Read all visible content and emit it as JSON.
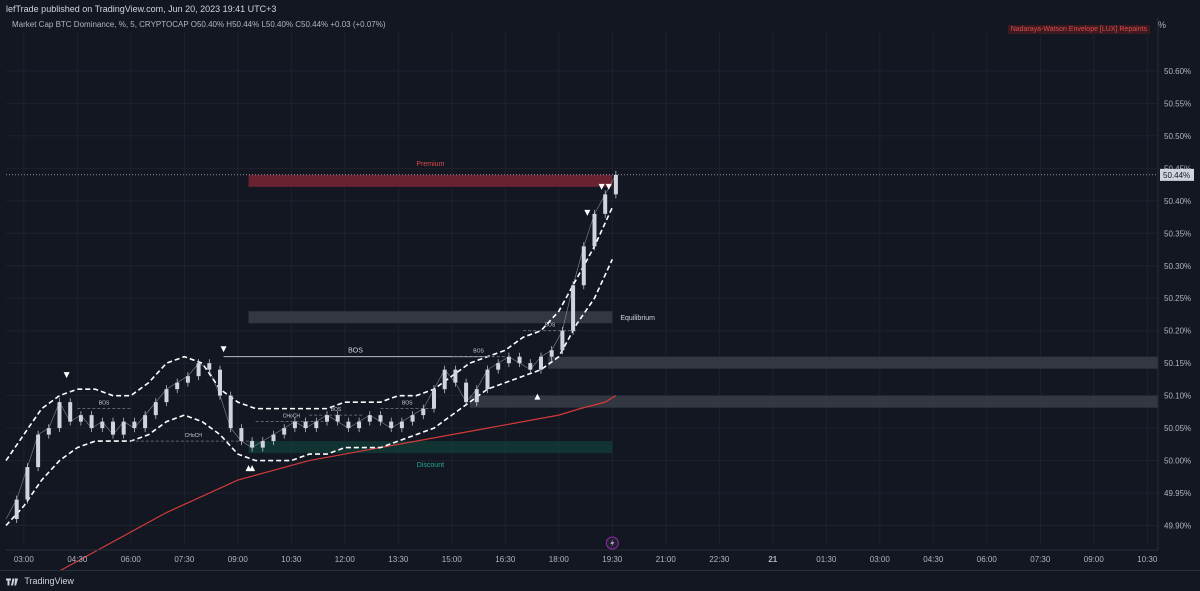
{
  "header": {
    "publisher_line": "lefTrade published on TradingView.com, Jun 20, 2023 19:41 UTC+3",
    "legend_line": "Market Cap BTC Dominance, %, 5, CRYPTOCAP  O50.40%  H50.44%  L50.40%  C50.44%  +0.03 (+0.07%)",
    "indicator_badge": "Nadaraya-Watson Envelope [LUX] Repaints",
    "axis_unit": "%"
  },
  "footer": {
    "brand": "TradingView"
  },
  "colors": {
    "background": "#131722",
    "candle": "#d1d4dc",
    "ma_line": "#d23a3a",
    "envelope": "#ffffff",
    "premium_zone": "#7a2532",
    "equilibrium_zone": "#3a3d47",
    "discount_zone": "#123a35",
    "premium_text": "#e04a4a",
    "discount_text": "#22ab94"
  },
  "chart_data": {
    "type": "line",
    "title": "Market Cap BTC Dominance",
    "ylim": [
      49.87,
      50.66
    ],
    "y_ticks": [
      "50.60%",
      "50.55%",
      "50.50%",
      "50.45%",
      "50.40%",
      "50.35%",
      "50.30%",
      "50.25%",
      "50.20%",
      "50.15%",
      "50.10%",
      "50.05%",
      "50.00%",
      "49.95%",
      "49.90%"
    ],
    "y_tick_values": [
      50.6,
      50.55,
      50.5,
      50.45,
      50.4,
      50.35,
      50.3,
      50.25,
      50.2,
      50.15,
      50.1,
      50.05,
      50.0,
      49.95,
      49.9
    ],
    "x_range": [
      2.5,
      34.8
    ],
    "x_ticks": [
      {
        "label": "03:00",
        "x": 3.0
      },
      {
        "label": "04:30",
        "x": 4.5
      },
      {
        "label": "06:00",
        "x": 6.0
      },
      {
        "label": "07:30",
        "x": 7.5
      },
      {
        "label": "09:00",
        "x": 9.0
      },
      {
        "label": "10:30",
        "x": 10.5
      },
      {
        "label": "12:00",
        "x": 12.0
      },
      {
        "label": "13:30",
        "x": 13.5
      },
      {
        "label": "15:00",
        "x": 15.0
      },
      {
        "label": "16:30",
        "x": 16.5
      },
      {
        "label": "18:00",
        "x": 18.0
      },
      {
        "label": "19:30",
        "x": 19.5
      },
      {
        "label": "21:00",
        "x": 21.0
      },
      {
        "label": "22:30",
        "x": 22.5
      },
      {
        "label": "21",
        "x": 24.0
      },
      {
        "label": "01:30",
        "x": 25.5
      },
      {
        "label": "03:00",
        "x": 27.0
      },
      {
        "label": "04:30",
        "x": 28.5
      },
      {
        "label": "06:00",
        "x": 30.0
      },
      {
        "label": "07:30",
        "x": 31.5
      },
      {
        "label": "09:00",
        "x": 33.0
      },
      {
        "label": "10:30",
        "x": 34.5
      }
    ],
    "price": {
      "x": [
        2.5,
        2.8,
        3.1,
        3.4,
        3.7,
        4.0,
        4.3,
        4.6,
        4.9,
        5.2,
        5.5,
        5.8,
        6.1,
        6.4,
        6.7,
        7.0,
        7.3,
        7.6,
        7.9,
        8.2,
        8.5,
        8.8,
        9.1,
        9.4,
        9.7,
        10.0,
        10.3,
        10.6,
        10.9,
        11.2,
        11.5,
        11.8,
        12.1,
        12.4,
        12.7,
        13.0,
        13.3,
        13.6,
        13.9,
        14.2,
        14.5,
        14.8,
        15.1,
        15.4,
        15.7,
        16.0,
        16.3,
        16.6,
        16.9,
        17.2,
        17.5,
        17.8,
        18.1,
        18.4,
        18.7,
        19.0,
        19.3,
        19.6
      ],
      "y": [
        49.91,
        49.94,
        49.99,
        50.04,
        50.05,
        50.09,
        50.06,
        50.07,
        50.05,
        50.06,
        50.04,
        50.06,
        50.05,
        50.07,
        50.09,
        50.11,
        50.12,
        50.13,
        50.15,
        50.14,
        50.1,
        50.05,
        50.03,
        50.02,
        50.03,
        50.04,
        50.05,
        50.06,
        50.05,
        50.06,
        50.07,
        50.06,
        50.05,
        50.06,
        50.07,
        50.06,
        50.05,
        50.06,
        50.07,
        50.08,
        50.11,
        50.14,
        50.12,
        50.09,
        50.11,
        50.14,
        50.15,
        50.16,
        50.15,
        50.14,
        50.16,
        50.17,
        50.2,
        50.27,
        50.33,
        50.38,
        50.41,
        50.44
      ]
    },
    "envelope_upper": {
      "x": [
        2.5,
        3.0,
        3.5,
        4.0,
        4.5,
        5.0,
        5.5,
        6.0,
        6.5,
        7.0,
        7.5,
        8.0,
        8.5,
        9.0,
        9.5,
        10.0,
        10.5,
        11.0,
        11.5,
        12.0,
        12.5,
        13.0,
        13.5,
        14.0,
        14.5,
        15.0,
        15.5,
        16.0,
        16.5,
        17.0,
        17.5,
        18.0,
        18.5,
        19.0,
        19.5
      ],
      "y": [
        50.0,
        50.04,
        50.08,
        50.1,
        50.11,
        50.11,
        50.1,
        50.1,
        50.12,
        50.15,
        50.16,
        50.15,
        50.11,
        50.09,
        50.08,
        50.08,
        50.08,
        50.08,
        50.08,
        50.09,
        50.09,
        50.09,
        50.1,
        50.1,
        50.11,
        50.13,
        50.15,
        50.16,
        50.17,
        50.19,
        50.2,
        50.23,
        50.28,
        50.33,
        50.39
      ]
    },
    "envelope_lower": {
      "x": [
        2.5,
        3.0,
        3.5,
        4.0,
        4.5,
        5.0,
        5.5,
        6.0,
        6.5,
        7.0,
        7.5,
        8.0,
        8.5,
        9.0,
        9.5,
        10.0,
        10.5,
        11.0,
        11.5,
        12.0,
        12.5,
        13.0,
        13.5,
        14.0,
        14.5,
        15.0,
        15.5,
        16.0,
        16.5,
        17.0,
        17.5,
        18.0,
        18.5,
        19.0,
        19.5
      ],
      "y": [
        49.9,
        49.93,
        49.97,
        50.0,
        50.02,
        50.03,
        50.03,
        50.03,
        50.04,
        50.06,
        50.07,
        50.06,
        50.04,
        50.01,
        50.0,
        50.0,
        50.0,
        50.01,
        50.01,
        50.02,
        50.02,
        50.02,
        50.03,
        50.04,
        50.05,
        50.07,
        50.09,
        50.11,
        50.12,
        50.13,
        50.14,
        50.16,
        50.21,
        50.25,
        50.31
      ]
    },
    "ma_line": {
      "x": [
        3.0,
        5.0,
        7.0,
        9.0,
        11.0,
        13.0,
        14.0,
        15.0,
        16.0,
        17.0,
        18.0,
        18.6,
        19.3,
        19.6
      ],
      "y": [
        49.8,
        49.86,
        49.92,
        49.97,
        50.0,
        50.02,
        50.03,
        50.04,
        50.05,
        50.06,
        50.07,
        50.08,
        50.09,
        50.1
      ]
    },
    "zones": [
      {
        "label": "Premium",
        "x_start": 9.3,
        "x_end": 19.5,
        "y_top": 50.44,
        "y_bottom": 50.43,
        "kind": "premium"
      },
      {
        "label": "Equilibrium",
        "x_start": 9.3,
        "x_end": 19.5,
        "y_top": 50.23,
        "y_bottom": 50.22,
        "kind": "equilibrium"
      },
      {
        "label": "",
        "x_start": 17.7,
        "x_end": 34.8,
        "y_top": 50.16,
        "y_bottom": 50.15,
        "kind": "equilibrium"
      },
      {
        "label": "",
        "x_start": 15.5,
        "x_end": 34.8,
        "y_top": 50.1,
        "y_bottom": 50.09,
        "kind": "equilibrium"
      },
      {
        "label": "Discount",
        "x_start": 9.3,
        "x_end": 19.5,
        "y_top": 50.03,
        "y_bottom": 50.02,
        "kind": "discount"
      }
    ],
    "structure_lines": [
      {
        "label": "BOS",
        "x_start": 8.6,
        "x_end": 16.0,
        "y": 50.16
      },
      {
        "label": "CHoCH",
        "x_start": 6.0,
        "x_end": 9.5,
        "y": 50.03
      },
      {
        "label": "BOS",
        "x_start": 4.5,
        "x_end": 6.0,
        "y": 50.08
      },
      {
        "label": "CHoCH",
        "x_start": 9.5,
        "x_end": 11.5,
        "y": 50.06
      },
      {
        "label": "BOS",
        "x_start": 11.0,
        "x_end": 12.5,
        "y": 50.07
      },
      {
        "label": "BOS",
        "x_start": 13.0,
        "x_end": 14.5,
        "y": 50.08
      },
      {
        "label": "BOS",
        "x_start": 15.0,
        "x_end": 16.5,
        "y": 50.16
      },
      {
        "label": "BOS",
        "x_start": 17.0,
        "x_end": 18.5,
        "y": 50.2
      }
    ],
    "markers": [
      {
        "kind": "down",
        "x": 4.2,
        "y": 50.13
      },
      {
        "kind": "down",
        "x": 8.6,
        "y": 50.17
      },
      {
        "kind": "up",
        "x": 9.3,
        "y": 49.99
      },
      {
        "kind": "up",
        "x": 9.4,
        "y": 49.99
      },
      {
        "kind": "up",
        "x": 17.4,
        "y": 50.1
      },
      {
        "kind": "down",
        "x": 18.8,
        "y": 50.38
      },
      {
        "kind": "down",
        "x": 19.2,
        "y": 50.42
      },
      {
        "kind": "down",
        "x": 19.4,
        "y": 50.42
      }
    ],
    "current_price": {
      "label": "50.44%",
      "value": 50.44
    },
    "grid": true
  }
}
